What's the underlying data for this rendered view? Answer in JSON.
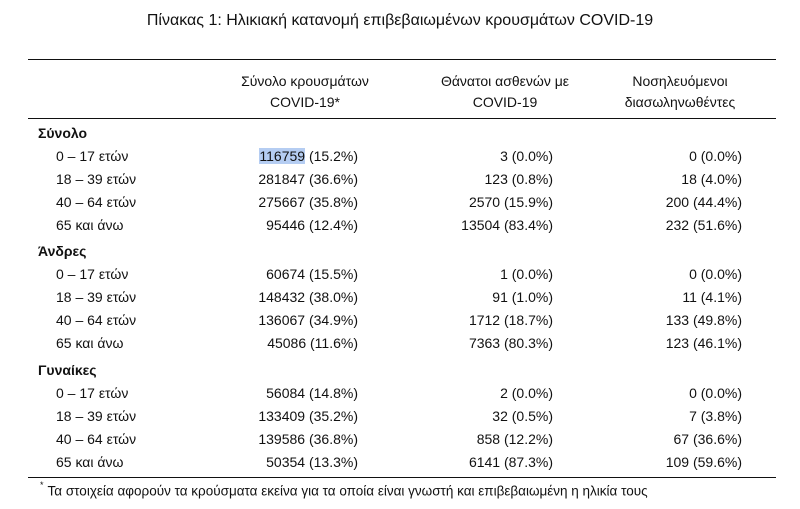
{
  "title": "Πίνακας 1: Ηλικιακή κατανομή επιβεβαιωμένων κρουσμάτων COVID-19",
  "headers": {
    "col1": [
      "Σύνολο κρουσμάτων",
      "COVID-19*"
    ],
    "col2": [
      "Θάνατοι ασθενών με",
      "COVID-19"
    ],
    "col3": [
      "Νοσηλευόμενοι",
      "διασωληνωθέντες"
    ]
  },
  "sections": [
    {
      "name": "Σύνολο",
      "rows": [
        {
          "label": "0 – 17 ετών",
          "cases_num": "116759",
          "cases_pct": "(15.2%)",
          "deaths": "3 (0.0%)",
          "intubated": "0 (0.0%)"
        },
        {
          "label": "18 – 39 ετών",
          "cases_num": "281847",
          "cases_pct": "(36.6%)",
          "deaths": "123 (0.8%)",
          "intubated": "18 (4.0%)"
        },
        {
          "label": "40 – 64 ετών",
          "cases_num": "275667",
          "cases_pct": "(35.8%)",
          "deaths": "2570 (15.9%)",
          "intubated": "200 (44.4%)"
        },
        {
          "label": "65 και άνω",
          "cases_num": "95446",
          "cases_pct": "(12.4%)",
          "deaths": "13504 (83.4%)",
          "intubated": "232 (51.6%)"
        }
      ]
    },
    {
      "name": "Άνδρες",
      "rows": [
        {
          "label": "0 – 17 ετών",
          "cases_num": "60674",
          "cases_pct": "(15.5%)",
          "deaths": "1 (0.0%)",
          "intubated": "0 (0.0%)"
        },
        {
          "label": "18 – 39 ετών",
          "cases_num": "148432",
          "cases_pct": "(38.0%)",
          "deaths": "91 (1.0%)",
          "intubated": "11 (4.1%)"
        },
        {
          "label": "40 – 64 ετών",
          "cases_num": "136067",
          "cases_pct": "(34.9%)",
          "deaths": "1712 (18.7%)",
          "intubated": "133 (49.8%)"
        },
        {
          "label": "65 και άνω",
          "cases_num": "45086",
          "cases_pct": "(11.6%)",
          "deaths": "7363 (80.3%)",
          "intubated": "123 (46.1%)"
        }
      ]
    },
    {
      "name": "Γυναίκες",
      "rows": [
        {
          "label": "0 – 17 ετών",
          "cases_num": "56084",
          "cases_pct": "(14.8%)",
          "deaths": "2 (0.0%)",
          "intubated": "0 (0.0%)"
        },
        {
          "label": "18 – 39 ετών",
          "cases_num": "133409",
          "cases_pct": "(35.2%)",
          "deaths": "32 (0.5%)",
          "intubated": "7 (3.8%)"
        },
        {
          "label": "40 – 64 ετών",
          "cases_num": "139586",
          "cases_pct": "(36.8%)",
          "deaths": "858 (12.2%)",
          "intubated": "67 (36.6%)"
        },
        {
          "label": "65 και άνω",
          "cases_num": "50354",
          "cases_pct": "(13.3%)",
          "deaths": "6141 (87.3%)",
          "intubated": "109 (59.6%)"
        }
      ]
    }
  ],
  "footnote": {
    "mark": "*",
    "text": "Τα στοιχεία αφορούν τα κρούσματα εκείνα για τα οποία είναι γνωστή και επιβεβαιωμένη η ηλικία τους"
  },
  "highlight_color": "#b5cdf2"
}
